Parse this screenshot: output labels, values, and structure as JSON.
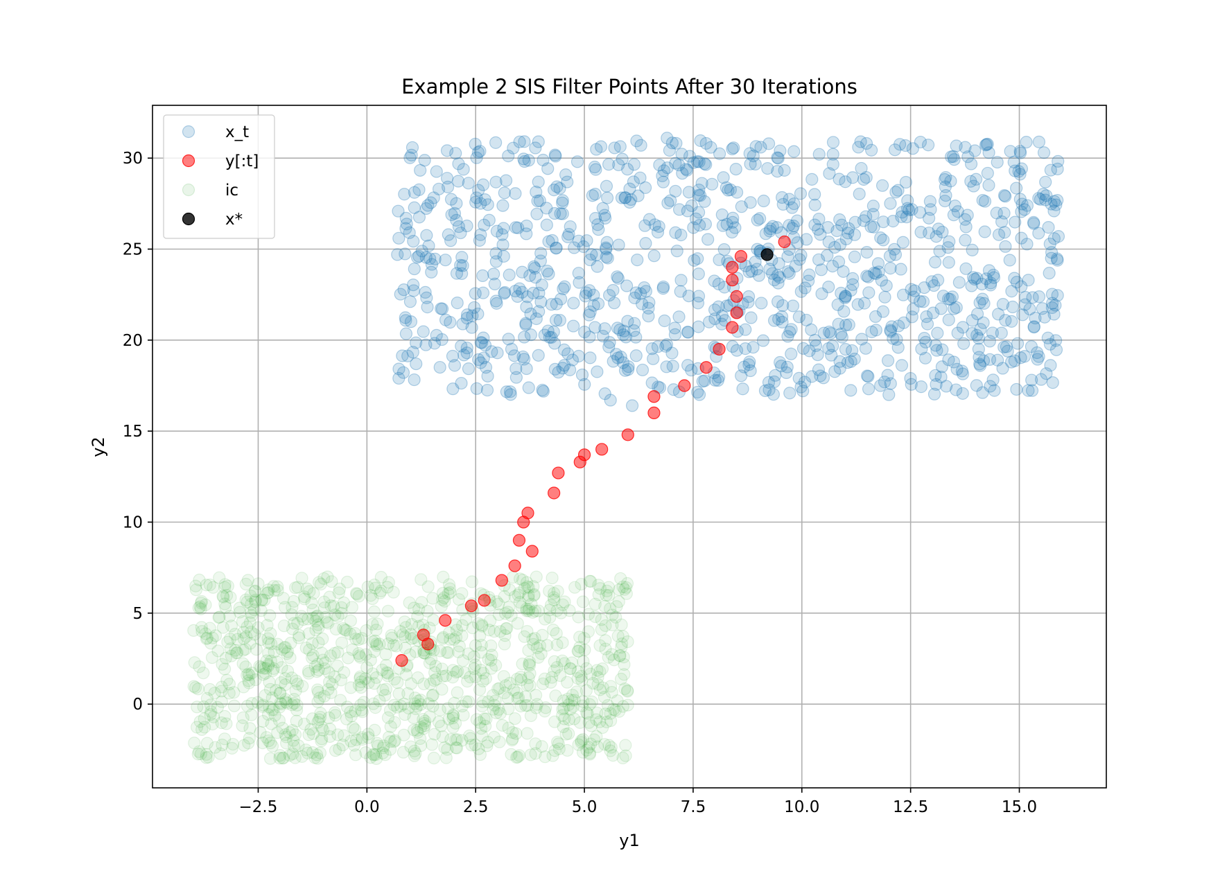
{
  "chart_data": {
    "type": "scatter",
    "title": "Example 2 SIS Filter Points After 30 Iterations",
    "xlabel": "y1",
    "ylabel": "y2",
    "xlim": [
      -4.93,
      17.0
    ],
    "ylim": [
      -4.6,
      32.9
    ],
    "grid": true,
    "legend_position": "upper left",
    "x_ticks": [
      -2.5,
      0.0,
      2.5,
      5.0,
      7.5,
      10.0,
      12.5,
      15.0
    ],
    "x_tick_labels": [
      "−2.5",
      "0.0",
      "2.5",
      "5.0",
      "7.5",
      "10.0",
      "12.5",
      "15.0"
    ],
    "y_ticks": [
      0,
      5,
      10,
      15,
      20,
      25,
      30
    ],
    "y_tick_labels": [
      "0",
      "5",
      "10",
      "15",
      "20",
      "25",
      "30"
    ],
    "series": [
      {
        "name": "x_t",
        "color": "#1f77b4",
        "alpha": 0.2,
        "distribution": {
          "x_range": [
            0.7,
            15.9
          ],
          "y_range": [
            17.0,
            31.0
          ],
          "count": 1000
        },
        "sample_points": [
          [
            0.7,
            24.7
          ],
          [
            0.9,
            26.7
          ],
          [
            1.4,
            27.4
          ],
          [
            15.6,
            27.7
          ],
          [
            15.9,
            25.7
          ],
          [
            14.9,
            29.3
          ],
          [
            14.3,
            30.3
          ],
          [
            6.9,
            31.1
          ],
          [
            6.3,
            30.7
          ],
          [
            8.4,
            30.5
          ],
          [
            9.5,
            30.4
          ],
          [
            11.3,
            30.6
          ],
          [
            12.0,
            17.0
          ],
          [
            11.9,
            17.7
          ],
          [
            5.6,
            16.7
          ],
          [
            6.1,
            16.4
          ],
          [
            14.5,
            18.9
          ],
          [
            14.1,
            18.6
          ],
          [
            3.0,
            19.3
          ],
          [
            2.3,
            19.3
          ]
        ]
      },
      {
        "name": "y[:t]",
        "color": "#ff0000",
        "alpha": 0.5,
        "points": [
          [
            0.8,
            2.4
          ],
          [
            1.3,
            3.8
          ],
          [
            1.4,
            3.3
          ],
          [
            1.8,
            4.6
          ],
          [
            2.4,
            5.4
          ],
          [
            2.7,
            5.7
          ],
          [
            3.1,
            6.8
          ],
          [
            3.4,
            7.6
          ],
          [
            3.5,
            9.0
          ],
          [
            3.6,
            10.0
          ],
          [
            3.7,
            10.5
          ],
          [
            3.8,
            8.4
          ],
          [
            4.3,
            11.6
          ],
          [
            4.4,
            12.7
          ],
          [
            4.9,
            13.3
          ],
          [
            5.0,
            13.7
          ],
          [
            5.4,
            14.0
          ],
          [
            6.0,
            14.8
          ],
          [
            6.6,
            16.0
          ],
          [
            6.6,
            16.9
          ],
          [
            7.3,
            17.5
          ],
          [
            7.8,
            18.5
          ],
          [
            8.1,
            19.5
          ],
          [
            8.4,
            20.7
          ],
          [
            8.5,
            21.5
          ],
          [
            8.5,
            22.4
          ],
          [
            8.4,
            23.3
          ],
          [
            8.4,
            24.0
          ],
          [
            8.6,
            24.6
          ],
          [
            9.6,
            25.4
          ]
        ]
      },
      {
        "name": "ic",
        "color": "#2ca02c",
        "alpha": 0.08,
        "distribution": {
          "x_range": [
            -4.0,
            6.0
          ],
          "y_range": [
            -3.0,
            7.0
          ],
          "count": 1000
        }
      },
      {
        "name": "x*",
        "color": "#000000",
        "alpha": 0.8,
        "points": [
          [
            9.2,
            24.7
          ]
        ]
      }
    ]
  }
}
